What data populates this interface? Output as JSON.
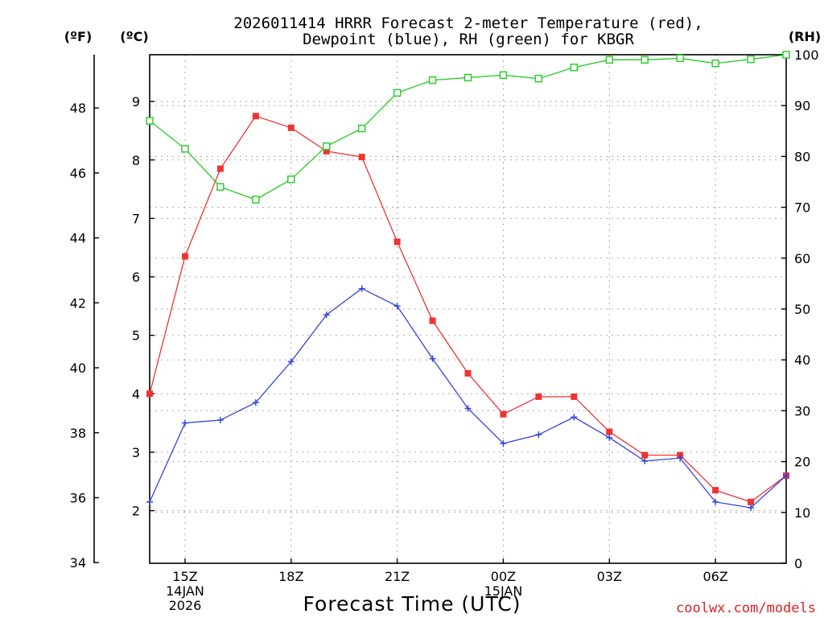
{
  "chart_data": {
    "type": "line",
    "title_line1": "2026011414 HRRR Forecast 2-meter Temperature (red),",
    "title_line2": "Dewpoint (blue), RH (green) for KBGR",
    "xlabel": "Forecast Time (UTC)",
    "credit": "coolwx.com/models",
    "units": {
      "fahrenheit": "(ºF)",
      "celsius": "(ºC)",
      "rh": "(RH)"
    },
    "x_range_hours": [
      14,
      32
    ],
    "x_ticks": [
      {
        "hour": 15,
        "lines": [
          "15Z",
          "14JAN",
          "2026"
        ]
      },
      {
        "hour": 18,
        "lines": [
          "18Z"
        ]
      },
      {
        "hour": 21,
        "lines": [
          "21Z"
        ]
      },
      {
        "hour": 24,
        "lines": [
          "00Z",
          "15JAN"
        ]
      },
      {
        "hour": 27,
        "lines": [
          "03Z"
        ]
      },
      {
        "hour": 30,
        "lines": [
          "06Z"
        ]
      }
    ],
    "celsius_range": [
      1.1,
      9.8
    ],
    "celsius_ticks": [
      2,
      3,
      4,
      5,
      6,
      7,
      8,
      9
    ],
    "fahrenheit_ticks": [
      34,
      36,
      38,
      40,
      42,
      44,
      46,
      48
    ],
    "rh_range": [
      0,
      100
    ],
    "rh_ticks": [
      0,
      10,
      20,
      30,
      40,
      50,
      60,
      70,
      80,
      90,
      100
    ],
    "hours": [
      14,
      15,
      16,
      17,
      18,
      19,
      20,
      21,
      22,
      23,
      24,
      25,
      26,
      27,
      28,
      29,
      30,
      31,
      32
    ],
    "series": [
      {
        "name": "Temperature",
        "axis": "celsius",
        "color": "#ee3333",
        "marker": "filled-square",
        "values": [
          4.0,
          6.35,
          7.85,
          8.75,
          8.55,
          8.15,
          8.05,
          6.6,
          5.25,
          4.35,
          3.65,
          3.95,
          3.95,
          3.35,
          2.95,
          2.95,
          2.35,
          2.15,
          2.6
        ]
      },
      {
        "name": "Dewpoint",
        "axis": "celsius",
        "color": "#3344dd",
        "marker": "plus",
        "values": [
          2.15,
          3.5,
          3.55,
          3.85,
          4.55,
          5.35,
          5.8,
          5.5,
          4.6,
          3.75,
          3.15,
          3.3,
          3.6,
          3.25,
          2.85,
          2.9,
          2.15,
          2.05,
          2.6
        ]
      },
      {
        "name": "RH",
        "axis": "rh",
        "color": "#22cc22",
        "marker": "open-square",
        "values": [
          87,
          81.5,
          74,
          71.5,
          75.5,
          82,
          85.5,
          92.5,
          95,
          95.5,
          96,
          95.3,
          97.5,
          99,
          99,
          99.3,
          98.3,
          99.1,
          100
        ]
      }
    ]
  }
}
